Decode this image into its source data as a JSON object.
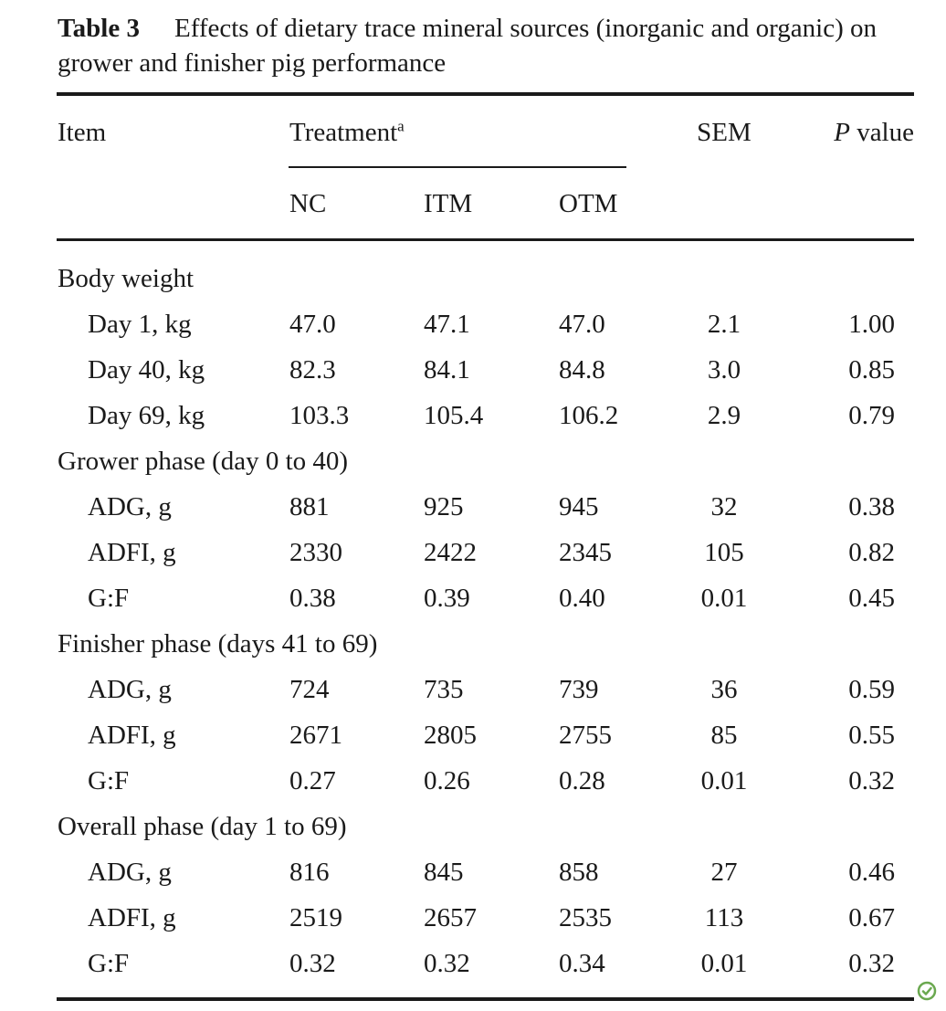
{
  "caption": {
    "label": "Table 3",
    "text": "Effects of dietary trace mineral sources (inorganic and organic) on grower and finisher pig performance"
  },
  "header": {
    "item": "Item",
    "treatment": "Treatment",
    "treatment_sup": "a",
    "sem": "SEM",
    "p_italic": "P",
    "p_rest": " value",
    "nc": "NC",
    "itm": "ITM",
    "otm": "OTM"
  },
  "rows": [
    {
      "type": "section",
      "item": "Body weight"
    },
    {
      "type": "data",
      "item": "Day 1, kg",
      "nc": "47.0",
      "itm": "47.1",
      "otm": "47.0",
      "sem": "2.1",
      "p": "1.00"
    },
    {
      "type": "data",
      "item": "Day 40, kg",
      "nc": "82.3",
      "itm": "84.1",
      "otm": "84.8",
      "sem": "3.0",
      "p": "0.85"
    },
    {
      "type": "data",
      "item": "Day 69, kg",
      "nc": "103.3",
      "itm": "105.4",
      "otm": "106.2",
      "sem": "2.9",
      "p": "0.79"
    },
    {
      "type": "section",
      "item": "Grower phase (day 0 to 40)"
    },
    {
      "type": "data",
      "item": "ADG, g",
      "nc": "881",
      "itm": "925",
      "otm": "945",
      "sem": "32",
      "p": "0.38"
    },
    {
      "type": "data",
      "item": "ADFI, g",
      "nc": "2330",
      "itm": "2422",
      "otm": "2345",
      "sem": "105",
      "p": "0.82"
    },
    {
      "type": "data",
      "item": "G:F",
      "nc": "0.38",
      "itm": "0.39",
      "otm": "0.40",
      "sem": "0.01",
      "p": "0.45"
    },
    {
      "type": "section",
      "item": "Finisher phase (days 41 to 69)"
    },
    {
      "type": "data",
      "item": "ADG, g",
      "nc": "724",
      "itm": "735",
      "otm": "739",
      "sem": "36",
      "p": "0.59"
    },
    {
      "type": "data",
      "item": "ADFI, g",
      "nc": "2671",
      "itm": "2805",
      "otm": "2755",
      "sem": "85",
      "p": "0.55"
    },
    {
      "type": "data",
      "item": "G:F",
      "nc": "0.27",
      "itm": "0.26",
      "otm": "0.28",
      "sem": "0.01",
      "p": "0.32"
    },
    {
      "type": "section",
      "item": "Overall phase (day 1 to 69)"
    },
    {
      "type": "data",
      "item": "ADG, g",
      "nc": "816",
      "itm": "845",
      "otm": "858",
      "sem": "27",
      "p": "0.46"
    },
    {
      "type": "data",
      "item": "ADFI, g",
      "nc": "2519",
      "itm": "2657",
      "otm": "2535",
      "sem": "113",
      "p": "0.67"
    },
    {
      "type": "data",
      "item": "G:F",
      "nc": "0.32",
      "itm": "0.32",
      "otm": "0.34",
      "sem": "0.01",
      "p": "0.32"
    }
  ],
  "icons": {
    "corner": "springer-crossmark-icon",
    "corner_color": "#6aa84f"
  }
}
